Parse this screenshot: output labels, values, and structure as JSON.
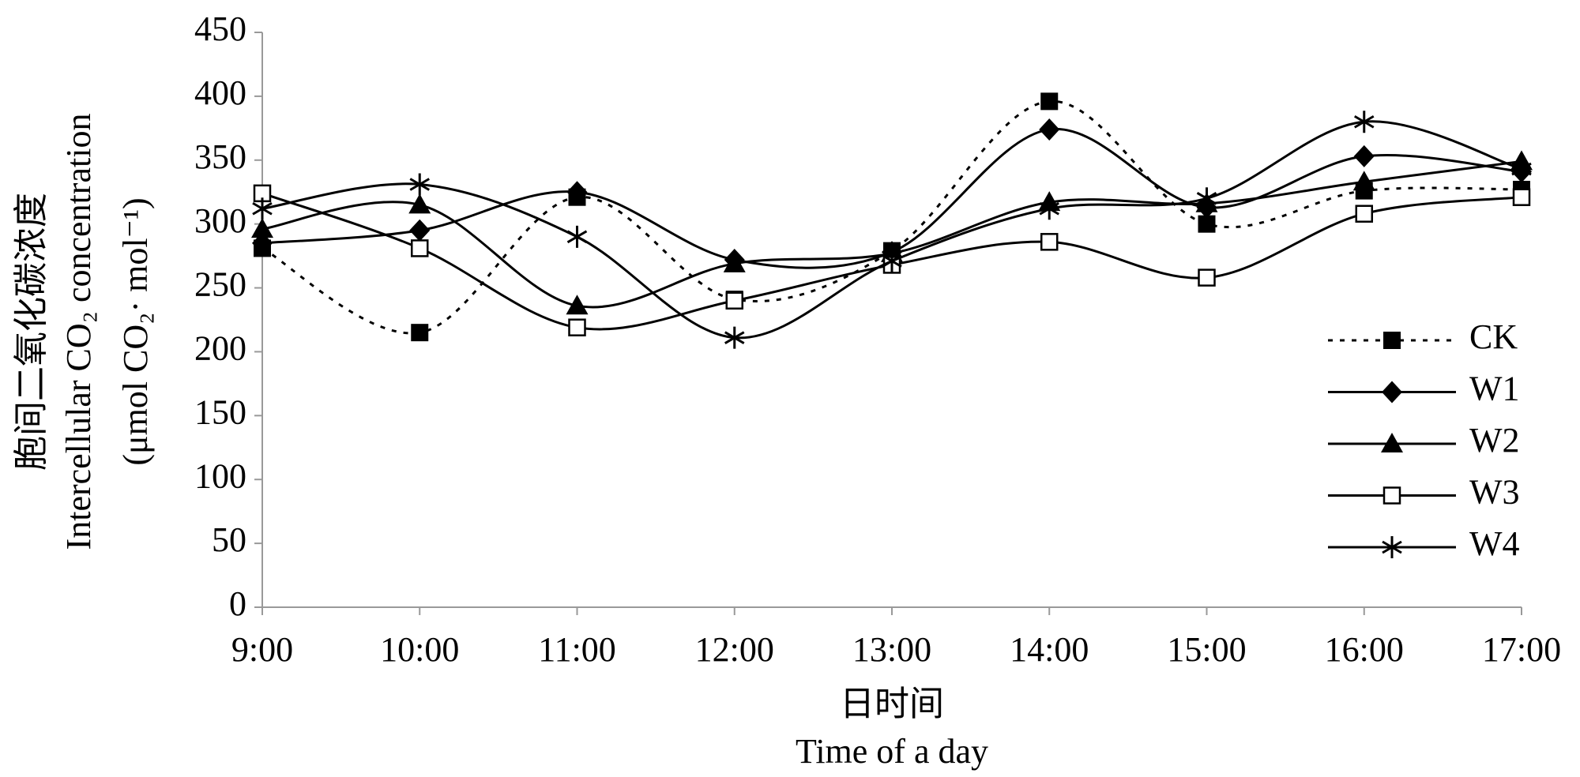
{
  "chart_data": {
    "type": "line",
    "y_label": [
      "胞间二氧化碳浓度",
      "Intercellular CO₂ concentration",
      "(μmol CO₂· mol⁻¹)"
    ],
    "x_label": [
      "日时间",
      "Time of a day"
    ],
    "categories": [
      "9:00",
      "10:00",
      "11:00",
      "12:00",
      "13:00",
      "14:00",
      "15:00",
      "16:00",
      "17:00"
    ],
    "series": [
      {
        "name": "CK",
        "color": "#000000",
        "line_style": "dotted",
        "marker": "square",
        "values": [
          281,
          215,
          321,
          241,
          279,
          396,
          300,
          326,
          327
        ]
      },
      {
        "name": "W1",
        "color": "#000000",
        "line_style": "solid",
        "marker": "diamond",
        "values": [
          285,
          295,
          325,
          272,
          278,
          374,
          313,
          353,
          341
        ]
      },
      {
        "name": "W2",
        "color": "#000000",
        "line_style": "solid",
        "marker": "triangle",
        "values": [
          296,
          315,
          236,
          269,
          277,
          317,
          316,
          333,
          349
        ]
      },
      {
        "name": "W3",
        "color": "#000000",
        "line_style": "solid",
        "marker": "square-open",
        "values": [
          324,
          281,
          219,
          240,
          268,
          286,
          258,
          308,
          321
        ]
      },
      {
        "name": "W4",
        "color": "#000000",
        "line_style": "solid",
        "marker": "star",
        "values": [
          312,
          331,
          290,
          211,
          271,
          312,
          320,
          380,
          343
        ]
      }
    ],
    "ylim": [
      0,
      450
    ],
    "yticks": [
      0,
      50,
      100,
      150,
      200,
      250,
      300,
      350,
      400,
      450
    ],
    "legend": "right",
    "smooth": true
  }
}
